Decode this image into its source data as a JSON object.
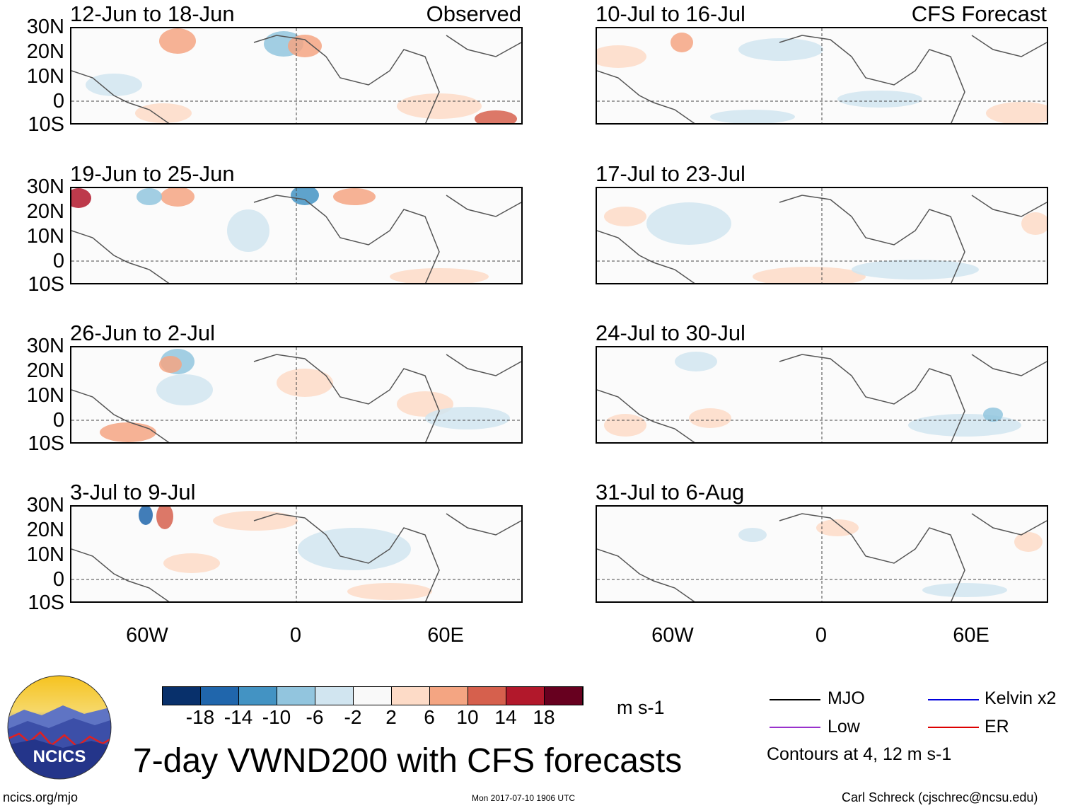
{
  "observed_label": "Observed",
  "forecast_label": "CFS Forecast",
  "lat_labels": [
    "30N",
    "20N",
    "10N",
    "0",
    "10S"
  ],
  "lon_labels": [
    "60W",
    "0",
    "60E"
  ],
  "panels": [
    {
      "title": "12-Jun to 18-Jun"
    },
    {
      "title": "10-Jul to 16-Jul"
    },
    {
      "title": "19-Jun to 25-Jun"
    },
    {
      "title": "17-Jul to 23-Jul"
    },
    {
      "title": "26-Jun to 2-Jul"
    },
    {
      "title": "24-Jul to 30-Jul"
    },
    {
      "title": "3-Jul to 9-Jul"
    },
    {
      "title": "31-Jul to 6-Aug"
    }
  ],
  "colorbar": {
    "ticks": [
      "-18",
      "-14",
      "-10",
      "-6",
      "-2",
      "2",
      "6",
      "10",
      "14",
      "18"
    ],
    "colors": [
      "#08306b",
      "#2066ac",
      "#4393c3",
      "#92c5de",
      "#d1e5f0",
      "#f9f9f9",
      "#fddbc7",
      "#f4a582",
      "#d6604d",
      "#b2182b",
      "#67001f"
    ],
    "units": "m s-1"
  },
  "legend": {
    "items": [
      {
        "label": "MJO",
        "color": "#000000"
      },
      {
        "label": "Kelvin x2",
        "color": "#0000dd"
      },
      {
        "label": "Low",
        "color": "#9932cc"
      },
      {
        "label": "ER",
        "color": "#dd0000"
      }
    ],
    "note": "Contours at 4, 12 m s-1"
  },
  "logo_text": "NCICS",
  "main_title": "7-day VWND200 with CFS forecasts",
  "footer": {
    "left": "ncics.org/mjo",
    "center": "Mon 2017-07-10 1906 UTC",
    "right": "Carl Schreck (cjschrec@ncsu.edu)"
  }
}
